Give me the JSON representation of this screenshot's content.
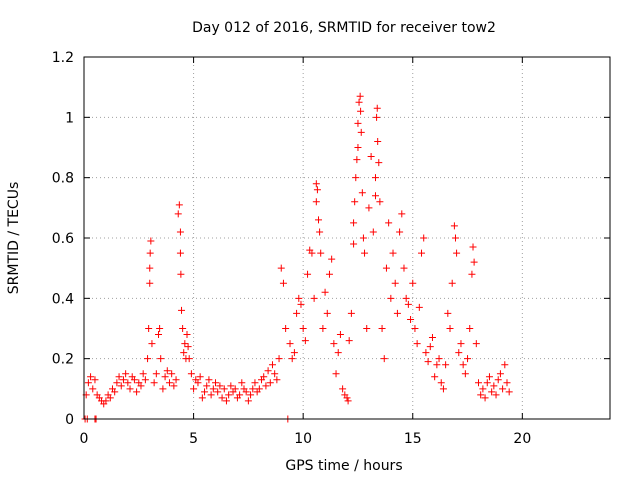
{
  "chart_data": {
    "type": "scatter",
    "title": "Day 012 of 2016, SRMTID for receiver tow2",
    "xlabel": "GPS time / hours",
    "ylabel": "SRMTID / TECUs",
    "xlim": [
      0,
      24
    ],
    "ylim": [
      0,
      1.2
    ],
    "xticks": [
      0,
      5,
      10,
      15,
      20
    ],
    "yticks": [
      0,
      0.2,
      0.4,
      0.6,
      0.8,
      1,
      1.2
    ],
    "xtick_labels": [
      "0",
      "5",
      "10",
      "15",
      "20"
    ],
    "ytick_labels": [
      "0",
      "0.2",
      "0.4",
      "0.6",
      "0.8",
      "1",
      "1.2"
    ],
    "grid": true,
    "marker": "+",
    "color": "#ff0000",
    "series": [
      {
        "name": "SRMTID",
        "points": [
          [
            0.05,
            0.0
          ],
          [
            0.15,
            0.0
          ],
          [
            0.5,
            0.0
          ],
          [
            0.55,
            0.0
          ],
          [
            0.1,
            0.08
          ],
          [
            0.2,
            0.12
          ],
          [
            0.3,
            0.14
          ],
          [
            0.4,
            0.1
          ],
          [
            0.5,
            0.13
          ],
          [
            0.6,
            0.08
          ],
          [
            0.7,
            0.07
          ],
          [
            0.8,
            0.06
          ],
          [
            0.9,
            0.05
          ],
          [
            1.0,
            0.06
          ],
          [
            1.1,
            0.08
          ],
          [
            1.2,
            0.07
          ],
          [
            1.3,
            0.1
          ],
          [
            1.4,
            0.09
          ],
          [
            1.5,
            0.12
          ],
          [
            1.6,
            0.14
          ],
          [
            1.7,
            0.11
          ],
          [
            1.8,
            0.13
          ],
          [
            1.9,
            0.15
          ],
          [
            2.0,
            0.12
          ],
          [
            2.1,
            0.1
          ],
          [
            2.2,
            0.14
          ],
          [
            2.3,
            0.13
          ],
          [
            2.4,
            0.09
          ],
          [
            2.5,
            0.12
          ],
          [
            2.6,
            0.11
          ],
          [
            2.7,
            0.15
          ],
          [
            2.8,
            0.13
          ],
          [
            2.9,
            0.2
          ],
          [
            2.95,
            0.3
          ],
          [
            3.0,
            0.45
          ],
          [
            3.0,
            0.5
          ],
          [
            3.02,
            0.55
          ],
          [
            3.05,
            0.59
          ],
          [
            3.1,
            0.25
          ],
          [
            3.2,
            0.12
          ],
          [
            3.3,
            0.15
          ],
          [
            3.4,
            0.28
          ],
          [
            3.45,
            0.3
          ],
          [
            3.5,
            0.2
          ],
          [
            3.6,
            0.1
          ],
          [
            3.7,
            0.14
          ],
          [
            3.8,
            0.16
          ],
          [
            3.9,
            0.12
          ],
          [
            4.0,
            0.15
          ],
          [
            4.1,
            0.11
          ],
          [
            4.2,
            0.13
          ],
          [
            4.3,
            0.68
          ],
          [
            4.35,
            0.71
          ],
          [
            4.4,
            0.62
          ],
          [
            4.4,
            0.55
          ],
          [
            4.42,
            0.48
          ],
          [
            4.45,
            0.36
          ],
          [
            4.5,
            0.3
          ],
          [
            4.55,
            0.22
          ],
          [
            4.6,
            0.25
          ],
          [
            4.65,
            0.2
          ],
          [
            4.7,
            0.28
          ],
          [
            4.75,
            0.24
          ],
          [
            4.8,
            0.2
          ],
          [
            4.9,
            0.15
          ],
          [
            5.0,
            0.1
          ],
          [
            5.1,
            0.13
          ],
          [
            5.2,
            0.12
          ],
          [
            5.3,
            0.14
          ],
          [
            5.4,
            0.07
          ],
          [
            5.5,
            0.09
          ],
          [
            5.6,
            0.11
          ],
          [
            5.7,
            0.13
          ],
          [
            5.8,
            0.08
          ],
          [
            5.9,
            0.1
          ],
          [
            6.0,
            0.12
          ],
          [
            6.1,
            0.09
          ],
          [
            6.2,
            0.11
          ],
          [
            6.3,
            0.07
          ],
          [
            6.4,
            0.1
          ],
          [
            6.5,
            0.06
          ],
          [
            6.6,
            0.08
          ],
          [
            6.7,
            0.11
          ],
          [
            6.8,
            0.09
          ],
          [
            6.9,
            0.1
          ],
          [
            7.0,
            0.07
          ],
          [
            7.1,
            0.08
          ],
          [
            7.2,
            0.12
          ],
          [
            7.3,
            0.1
          ],
          [
            7.4,
            0.09
          ],
          [
            7.5,
            0.06
          ],
          [
            7.6,
            0.08
          ],
          [
            7.7,
            0.1
          ],
          [
            7.8,
            0.12
          ],
          [
            7.9,
            0.09
          ],
          [
            8.0,
            0.1
          ],
          [
            8.1,
            0.13
          ],
          [
            8.2,
            0.14
          ],
          [
            8.3,
            0.11
          ],
          [
            8.4,
            0.16
          ],
          [
            8.5,
            0.12
          ],
          [
            8.6,
            0.18
          ],
          [
            8.7,
            0.15
          ],
          [
            8.8,
            0.13
          ],
          [
            8.9,
            0.2
          ],
          [
            9.0,
            0.5
          ],
          [
            9.1,
            0.45
          ],
          [
            9.2,
            0.3
          ],
          [
            9.3,
            0.0
          ],
          [
            9.4,
            0.25
          ],
          [
            9.5,
            0.2
          ],
          [
            9.6,
            0.22
          ],
          [
            9.7,
            0.35
          ],
          [
            9.8,
            0.4
          ],
          [
            9.9,
            0.38
          ],
          [
            10.0,
            0.3
          ],
          [
            10.1,
            0.26
          ],
          [
            10.2,
            0.48
          ],
          [
            10.3,
            0.56
          ],
          [
            10.4,
            0.55
          ],
          [
            10.5,
            0.4
          ],
          [
            10.6,
            0.72
          ],
          [
            10.6,
            0.78
          ],
          [
            10.65,
            0.76
          ],
          [
            10.7,
            0.66
          ],
          [
            10.75,
            0.62
          ],
          [
            10.8,
            0.55
          ],
          [
            10.9,
            0.3
          ],
          [
            11.0,
            0.42
          ],
          [
            11.1,
            0.35
          ],
          [
            11.2,
            0.48
          ],
          [
            11.3,
            0.53
          ],
          [
            11.4,
            0.25
          ],
          [
            11.5,
            0.15
          ],
          [
            11.6,
            0.22
          ],
          [
            11.7,
            0.28
          ],
          [
            11.8,
            0.1
          ],
          [
            11.9,
            0.08
          ],
          [
            12.0,
            0.07
          ],
          [
            12.05,
            0.06
          ],
          [
            12.1,
            0.26
          ],
          [
            12.2,
            0.35
          ],
          [
            12.3,
            0.58
          ],
          [
            12.3,
            0.65
          ],
          [
            12.35,
            0.72
          ],
          [
            12.4,
            0.8
          ],
          [
            12.45,
            0.86
          ],
          [
            12.5,
            0.9
          ],
          [
            12.5,
            0.98
          ],
          [
            12.55,
            1.05
          ],
          [
            12.6,
            1.07
          ],
          [
            12.62,
            1.02
          ],
          [
            12.65,
            0.95
          ],
          [
            12.7,
            0.75
          ],
          [
            12.75,
            0.6
          ],
          [
            12.8,
            0.55
          ],
          [
            12.9,
            0.3
          ],
          [
            13.0,
            0.7
          ],
          [
            13.1,
            0.87
          ],
          [
            13.2,
            0.62
          ],
          [
            13.3,
            0.8
          ],
          [
            13.3,
            0.74
          ],
          [
            13.35,
            1.0
          ],
          [
            13.38,
            1.03
          ],
          [
            13.4,
            0.92
          ],
          [
            13.45,
            0.85
          ],
          [
            13.5,
            0.72
          ],
          [
            13.6,
            0.3
          ],
          [
            13.7,
            0.2
          ],
          [
            13.8,
            0.5
          ],
          [
            13.9,
            0.65
          ],
          [
            14.0,
            0.4
          ],
          [
            14.1,
            0.55
          ],
          [
            14.2,
            0.45
          ],
          [
            14.3,
            0.35
          ],
          [
            14.4,
            0.62
          ],
          [
            14.5,
            0.68
          ],
          [
            14.6,
            0.5
          ],
          [
            14.7,
            0.4
          ],
          [
            14.8,
            0.38
          ],
          [
            14.9,
            0.33
          ],
          [
            15.0,
            0.45
          ],
          [
            15.1,
            0.3
          ],
          [
            15.2,
            0.25
          ],
          [
            15.3,
            0.37
          ],
          [
            15.4,
            0.55
          ],
          [
            15.5,
            0.6
          ],
          [
            15.6,
            0.22
          ],
          [
            15.7,
            0.19
          ],
          [
            15.8,
            0.24
          ],
          [
            15.9,
            0.27
          ],
          [
            16.0,
            0.14
          ],
          [
            16.1,
            0.18
          ],
          [
            16.2,
            0.2
          ],
          [
            16.3,
            0.12
          ],
          [
            16.4,
            0.1
          ],
          [
            16.5,
            0.18
          ],
          [
            16.6,
            0.35
          ],
          [
            16.7,
            0.3
          ],
          [
            16.8,
            0.45
          ],
          [
            16.9,
            0.64
          ],
          [
            16.95,
            0.6
          ],
          [
            17.0,
            0.55
          ],
          [
            17.1,
            0.22
          ],
          [
            17.2,
            0.25
          ],
          [
            17.3,
            0.18
          ],
          [
            17.4,
            0.15
          ],
          [
            17.5,
            0.2
          ],
          [
            17.6,
            0.3
          ],
          [
            17.7,
            0.48
          ],
          [
            17.75,
            0.57
          ],
          [
            17.8,
            0.52
          ],
          [
            17.9,
            0.25
          ],
          [
            18.0,
            0.12
          ],
          [
            18.1,
            0.08
          ],
          [
            18.2,
            0.1
          ],
          [
            18.3,
            0.07
          ],
          [
            18.4,
            0.12
          ],
          [
            18.5,
            0.14
          ],
          [
            18.6,
            0.09
          ],
          [
            18.7,
            0.11
          ],
          [
            18.8,
            0.08
          ],
          [
            18.9,
            0.13
          ],
          [
            19.0,
            0.15
          ],
          [
            19.1,
            0.1
          ],
          [
            19.2,
            0.18
          ],
          [
            19.3,
            0.12
          ],
          [
            19.4,
            0.09
          ]
        ]
      }
    ]
  }
}
